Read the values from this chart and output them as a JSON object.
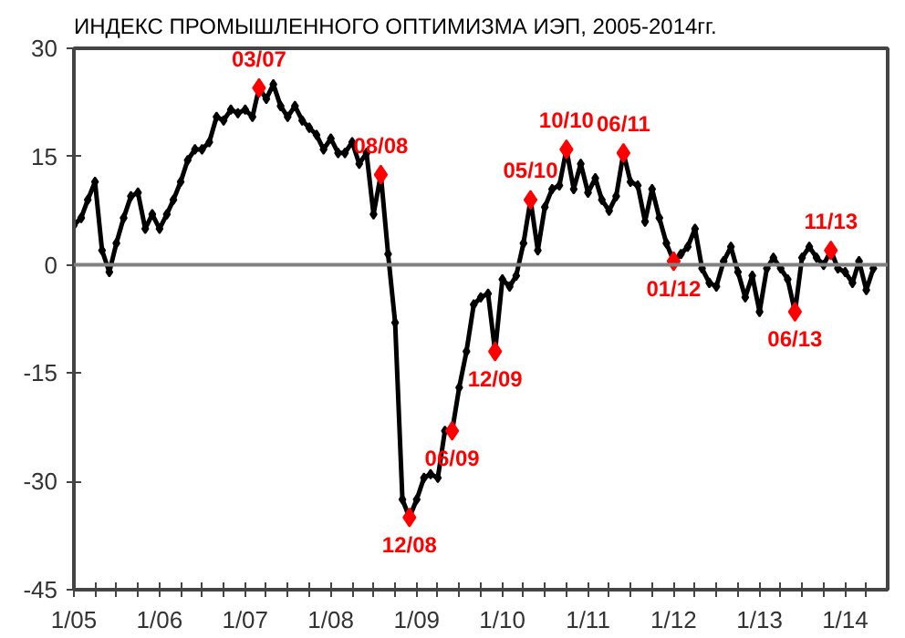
{
  "chart_data": {
    "type": "line",
    "title": "ИНДЕКС ПРОМЫШЛЕННОГО ОПТИМИЗМА ИЭП, 2005-2014гг.",
    "marker": "diamond",
    "grid": false,
    "xlim": [
      "2005-01",
      "2014-07"
    ],
    "ylim": [
      -45,
      30
    ],
    "yticks": [
      -45,
      -30,
      -15,
      0,
      15,
      30
    ],
    "xticks": [
      {
        "value": "2005-01",
        "label": "1/05"
      },
      {
        "value": "2005-04",
        "label": null
      },
      {
        "value": "2005-07",
        "label": null
      },
      {
        "value": "2005-10",
        "label": null
      },
      {
        "value": "2006-01",
        "label": "1/06"
      },
      {
        "value": "2006-04",
        "label": null
      },
      {
        "value": "2006-07",
        "label": null
      },
      {
        "value": "2006-10",
        "label": null
      },
      {
        "value": "2007-01",
        "label": "1/07"
      },
      {
        "value": "2007-04",
        "label": null
      },
      {
        "value": "2007-07",
        "label": null
      },
      {
        "value": "2007-10",
        "label": null
      },
      {
        "value": "2008-01",
        "label": "1/08"
      },
      {
        "value": "2008-04",
        "label": null
      },
      {
        "value": "2008-07",
        "label": null
      },
      {
        "value": "2008-10",
        "label": null
      },
      {
        "value": "2009-01",
        "label": "1/09"
      },
      {
        "value": "2009-04",
        "label": null
      },
      {
        "value": "2009-07",
        "label": null
      },
      {
        "value": "2009-10",
        "label": null
      },
      {
        "value": "2010-01",
        "label": "1/10"
      },
      {
        "value": "2010-04",
        "label": null
      },
      {
        "value": "2010-07",
        "label": null
      },
      {
        "value": "2010-10",
        "label": null
      },
      {
        "value": "2011-01",
        "label": "1/11"
      },
      {
        "value": "2011-04",
        "label": null
      },
      {
        "value": "2011-07",
        "label": null
      },
      {
        "value": "2011-10",
        "label": null
      },
      {
        "value": "2012-01",
        "label": "1/12"
      },
      {
        "value": "2012-04",
        "label": null
      },
      {
        "value": "2012-07",
        "label": null
      },
      {
        "value": "2012-10",
        "label": null
      },
      {
        "value": "2013-01",
        "label": "1/13"
      },
      {
        "value": "2013-04",
        "label": null
      },
      {
        "value": "2013-07",
        "label": null
      },
      {
        "value": "2013-10",
        "label": null
      },
      {
        "value": "2014-01",
        "label": "1/14"
      },
      {
        "value": "2014-04",
        "label": null
      }
    ],
    "ref_lines": [
      {
        "axis": "y",
        "value": 0,
        "label": null,
        "color": "#808080"
      }
    ],
    "x": [
      "2005-01",
      "2005-02",
      "2005-03",
      "2005-04",
      "2005-05",
      "2005-06",
      "2005-07",
      "2005-08",
      "2005-09",
      "2005-10",
      "2005-11",
      "2005-12",
      "2006-01",
      "2006-02",
      "2006-03",
      "2006-04",
      "2006-05",
      "2006-06",
      "2006-07",
      "2006-08",
      "2006-09",
      "2006-10",
      "2006-11",
      "2006-12",
      "2007-01",
      "2007-02",
      "2007-03",
      "2007-04",
      "2007-05",
      "2007-06",
      "2007-07",
      "2007-08",
      "2007-09",
      "2007-10",
      "2007-11",
      "2007-12",
      "2008-01",
      "2008-02",
      "2008-03",
      "2008-04",
      "2008-05",
      "2008-06",
      "2008-07",
      "2008-08",
      "2008-09",
      "2008-10",
      "2008-11",
      "2008-12",
      "2009-01",
      "2009-02",
      "2009-03",
      "2009-04",
      "2009-05",
      "2009-06",
      "2009-07",
      "2009-08",
      "2009-09",
      "2009-10",
      "2009-11",
      "2009-12",
      "2010-01",
      "2010-02",
      "2010-03",
      "2010-04",
      "2010-05",
      "2010-06",
      "2010-07",
      "2010-08",
      "2010-09",
      "2010-10",
      "2010-11",
      "2010-12",
      "2011-01",
      "2011-02",
      "2011-03",
      "2011-04",
      "2011-05",
      "2011-06",
      "2011-07",
      "2011-08",
      "2011-09",
      "2011-10",
      "2011-11",
      "2011-12",
      "2012-01",
      "2012-02",
      "2012-03",
      "2012-04",
      "2012-05",
      "2012-06",
      "2012-07",
      "2012-08",
      "2012-09",
      "2012-10",
      "2012-11",
      "2012-12",
      "2013-01",
      "2013-02",
      "2013-03",
      "2013-04",
      "2013-05",
      "2013-06",
      "2013-07",
      "2013-08",
      "2013-09",
      "2013-10",
      "2013-11",
      "2013-12",
      "2014-01",
      "2014-02",
      "2014-03",
      "2014-04",
      "2014-05"
    ],
    "series": [
      {
        "color": "#000000",
        "values": [
          5.5,
          6.5,
          9,
          11.5,
          2,
          -1,
          3,
          6.5,
          9.5,
          10,
          5,
          7,
          5,
          7,
          9,
          11.5,
          14.5,
          16,
          16,
          17,
          20.5,
          20,
          21.5,
          21,
          21.5,
          20.5,
          24.5,
          23,
          25,
          22,
          20.5,
          22,
          20,
          19,
          18,
          16,
          17.5,
          15.5,
          15.5,
          17,
          14,
          15.5,
          7,
          12.5,
          1.5,
          -8,
          -32.5,
          -35,
          -32.5,
          -29.5,
          -29,
          -29.5,
          -23,
          -23,
          -17,
          -12,
          -5.5,
          -4.5,
          -4,
          -12,
          -2,
          -3,
          -1.5,
          3,
          9,
          2,
          8,
          10.5,
          11,
          16,
          10.5,
          14,
          10,
          12,
          9,
          7.5,
          9.5,
          15.5,
          11.5,
          11,
          6,
          10.5,
          6.5,
          3,
          0.5,
          1.5,
          2.5,
          5,
          -0.5,
          -2.5,
          -3,
          0.5,
          2.5,
          -1,
          -4.5,
          -1.5,
          -6.5,
          -0.5,
          1,
          -0.5,
          -2,
          -6.5,
          1,
          2.5,
          1,
          0,
          2,
          -0.5,
          -1,
          -2.5,
          0.5,
          -3.5,
          -0.5
        ]
      },
      {
        "type": "scatter",
        "color": "#ff0000",
        "x": [
          "2007-03",
          "2008-08",
          "2008-12",
          "2009-06",
          "2009-12",
          "2010-05",
          "2010-10",
          "2011-06",
          "2012-01",
          "2013-06",
          "2013-11"
        ],
        "values": [
          24.5,
          12.5,
          -35,
          -23,
          -12,
          9,
          16,
          15.5,
          0.5,
          -6.5,
          2
        ]
      }
    ],
    "annotations": [
      {
        "text": "03/07",
        "x": "2007-03",
        "y": 24.5
      },
      {
        "text": "08/08",
        "x": "2008-08",
        "y": 12.5
      },
      {
        "text": "12/08",
        "x": "2008-12",
        "y": -35
      },
      {
        "text": "06/09",
        "x": "2009-06",
        "y": -23
      },
      {
        "text": "12/09",
        "x": "2009-12",
        "y": -12
      },
      {
        "text": "05/10",
        "x": "2010-05",
        "y": 9
      },
      {
        "text": "10/10",
        "x": "2010-10",
        "y": 16
      },
      {
        "text": "06/11",
        "x": "2011-06",
        "y": 15.5
      },
      {
        "text": "01/12",
        "x": "2012-01",
        "y": 0.5
      },
      {
        "text": "06/13",
        "x": "2013-06",
        "y": -6.5
      },
      {
        "text": "11/13",
        "x": "2013-11",
        "y": 2
      }
    ]
  }
}
